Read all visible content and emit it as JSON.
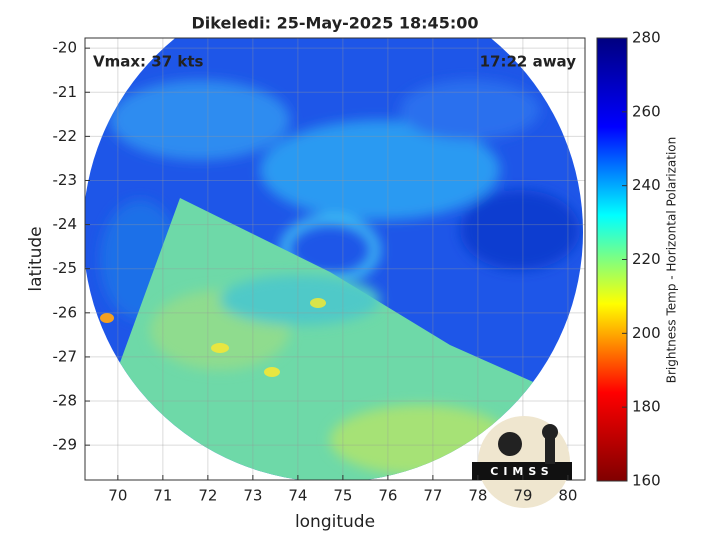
{
  "chart_data": {
    "type": "image",
    "title": "Dikeledi: 25-May-2025 18:45:00",
    "x_label": "longitude",
    "y_label": "latitude",
    "xlim": [
      69.27,
      80.38
    ],
    "xticks": [
      70,
      71,
      72,
      73,
      74,
      75,
      76,
      77,
      78,
      79,
      80
    ],
    "ylim": [
      -29.79,
      -19.77
    ],
    "yticks": [
      -29,
      -28,
      -27,
      -26,
      -25,
      -24,
      -23,
      -22,
      -21,
      -20
    ],
    "grid": true,
    "annotations": [
      "Vmax: 37 kts",
      "17:22 away"
    ],
    "logo": "CIMSS",
    "colorbar": {
      "label": "Brightness Temp - Horizontal Polarization",
      "lim": [
        160,
        280
      ],
      "ticks": [
        160,
        180,
        200,
        220,
        240,
        260,
        280
      ],
      "colors": [
        "#800000",
        "#ff0000",
        "#ffff00",
        "#00ffff",
        "#0000ff",
        "#000080"
      ]
    }
  }
}
